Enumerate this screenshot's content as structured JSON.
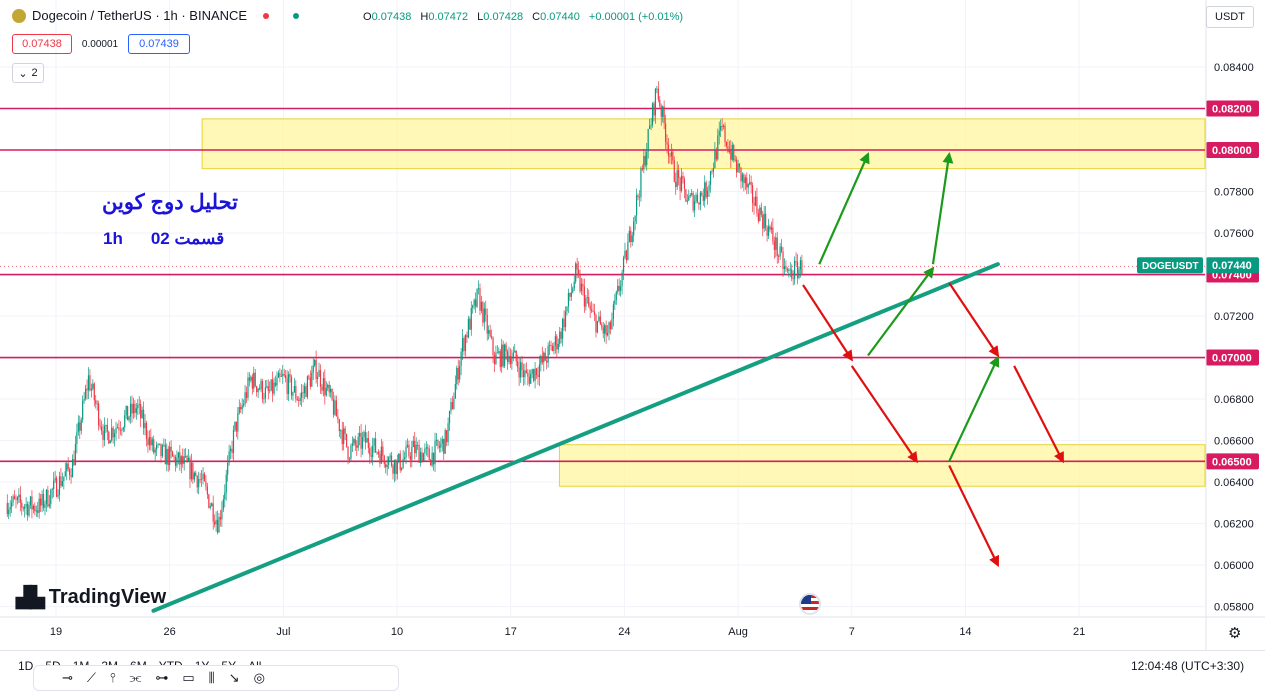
{
  "header": {
    "symbol_title": "Dogecoin / TetherUS · 1h · BINANCE",
    "ohlc": [
      {
        "k": "O",
        "v": "0.07438"
      },
      {
        "k": "H",
        "v": "0.07472"
      },
      {
        "k": "L",
        "v": "0.07428"
      },
      {
        "k": "C",
        "v": "0.07440"
      },
      {
        "k": "",
        "v": "+0.00001 (+0.01%)"
      }
    ],
    "sell_price": "0.07438",
    "spread": "0.00001",
    "buy_price": "0.07439",
    "indicator_count": "2",
    "currency": "USDT"
  },
  "annotations": {
    "title_line1": "تحلیل دوج کوین",
    "title_line2_interval": "1h",
    "title_line2_part": "قسمت 02"
  },
  "branding": "TradingView",
  "bottom": {
    "ranges": [
      "1D",
      "5D",
      "1M",
      "3M",
      "6M",
      "YTD",
      "1Y",
      "5Y",
      "All"
    ],
    "clock": "12:04:48 (UTC+3:30)"
  },
  "colors": {
    "up": "#089981",
    "down": "#f23645",
    "level_line": "#d81b60",
    "zone_fill": "#fff59d",
    "trendline": "#149f82",
    "arrow_up": "#1b9a1b",
    "arrow_down": "#e01010",
    "title_text": "#1b14d6"
  },
  "chart_data": {
    "type": "candlestick",
    "ylim": [
      0.0575,
      0.0853
    ],
    "y_ticks": [
      "0.08400",
      "0.07800",
      "0.07600",
      "0.07200",
      "0.06800",
      "0.06600",
      "0.06400",
      "0.06200",
      "0.06000",
      "0.05800"
    ],
    "x_ticks": [
      "19",
      "26",
      "Jul",
      "10",
      "17",
      "24",
      "Aug",
      "7",
      "14",
      "21"
    ],
    "level_labels": [
      {
        "label": "0.08200",
        "value": 0.082
      },
      {
        "label": "0.08000",
        "value": 0.08
      },
      {
        "label": "0.07400",
        "value": 0.074
      },
      {
        "label": "0.07000",
        "value": 0.07
      },
      {
        "label": "0.06500",
        "value": 0.065
      }
    ],
    "current_price_label": "0.07440",
    "current_price": 0.0744,
    "symbol_tag": "DOGEUSDT",
    "zones": [
      {
        "from_date": "Jun 28",
        "to_date": "end",
        "low": 0.0791,
        "high": 0.0815
      },
      {
        "from_date": "Jul 20",
        "to_date": "end",
        "low": 0.0638,
        "high": 0.0658
      }
    ],
    "price_path": [
      {
        "date": "Jun 16",
        "price": 0.063
      },
      {
        "date": "Jun 18",
        "price": 0.0628
      },
      {
        "date": "Jun 20",
        "price": 0.0648
      },
      {
        "date": "Jun 21",
        "price": 0.069
      },
      {
        "date": "Jun 22",
        "price": 0.0662
      },
      {
        "date": "Jun 24",
        "price": 0.0676
      },
      {
        "date": "Jun 25",
        "price": 0.0655
      },
      {
        "date": "Jun 26",
        "price": 0.0652
      },
      {
        "date": "Jun 27",
        "price": 0.0648
      },
      {
        "date": "Jun 28",
        "price": 0.064
      },
      {
        "date": "Jun 29",
        "price": 0.062
      },
      {
        "date": "Jun 30",
        "price": 0.0665
      },
      {
        "date": "Jul 1",
        "price": 0.069
      },
      {
        "date": "Jul 2",
        "price": 0.0682
      },
      {
        "date": "Jul 3",
        "price": 0.069
      },
      {
        "date": "Jul 4",
        "price": 0.068
      },
      {
        "date": "Jul 5",
        "price": 0.0695
      },
      {
        "date": "Jul 6",
        "price": 0.0678
      },
      {
        "date": "Jul 7",
        "price": 0.0655
      },
      {
        "date": "Jul 8",
        "price": 0.066
      },
      {
        "date": "Jul 9",
        "price": 0.0654
      },
      {
        "date": "Jul 10",
        "price": 0.0648
      },
      {
        "date": "Jul 11",
        "price": 0.0656
      },
      {
        "date": "Jul 12",
        "price": 0.0652
      },
      {
        "date": "Jul 13",
        "price": 0.066
      },
      {
        "date": "Jul 14",
        "price": 0.0705
      },
      {
        "date": "Jul 15",
        "price": 0.073
      },
      {
        "date": "Jul 16",
        "price": 0.07
      },
      {
        "date": "Jul 17",
        "price": 0.0702
      },
      {
        "date": "Jul 18",
        "price": 0.069
      },
      {
        "date": "Jul 19",
        "price": 0.0698
      },
      {
        "date": "Jul 20",
        "price": 0.071
      },
      {
        "date": "Jul 21",
        "price": 0.074
      },
      {
        "date": "Jul 22",
        "price": 0.072
      },
      {
        "date": "Jul 23",
        "price": 0.071
      },
      {
        "date": "Jul 24",
        "price": 0.0745
      },
      {
        "date": "Jul 25",
        "price": 0.0785
      },
      {
        "date": "Jul 26",
        "price": 0.083
      },
      {
        "date": "Jul 27",
        "price": 0.079
      },
      {
        "date": "Jul 28",
        "price": 0.0775
      },
      {
        "date": "Jul 29",
        "price": 0.078
      },
      {
        "date": "Jul 30",
        "price": 0.081
      },
      {
        "date": "Jul 31",
        "price": 0.079
      },
      {
        "date": "Aug 1",
        "price": 0.0775
      },
      {
        "date": "Aug 2",
        "price": 0.076
      },
      {
        "date": "Aug 3",
        "price": 0.074
      },
      {
        "date": "Aug 4",
        "price": 0.0744
      }
    ],
    "trendline": {
      "from": {
        "date": "Jun 25",
        "price": 0.0578
      },
      "to": {
        "date": "Aug 16",
        "price": 0.0745
      }
    },
    "arrows": [
      {
        "color": "up",
        "from": {
          "date": "Aug 5",
          "price": 0.0745
        },
        "to": {
          "date": "Aug 8",
          "price": 0.0798
        }
      },
      {
        "color": "up",
        "from": {
          "date": "Aug 8",
          "price": 0.0701
        },
        "to": {
          "date": "Aug 12",
          "price": 0.0743
        }
      },
      {
        "color": "up",
        "from": {
          "date": "Aug 12",
          "price": 0.0745
        },
        "to": {
          "date": "Aug 13",
          "price": 0.0798
        }
      },
      {
        "color": "up",
        "from": {
          "date": "Aug 13",
          "price": 0.065
        },
        "to": {
          "date": "Aug 16",
          "price": 0.07
        }
      },
      {
        "color": "down",
        "from": {
          "date": "Aug 4",
          "price": 0.0735
        },
        "to": {
          "date": "Aug 7",
          "price": 0.0699
        }
      },
      {
        "color": "down",
        "from": {
          "date": "Aug 7",
          "price": 0.0696
        },
        "to": {
          "date": "Aug 11",
          "price": 0.065
        }
      },
      {
        "color": "down",
        "from": {
          "date": "Aug 13",
          "price": 0.0736
        },
        "to": {
          "date": "Aug 16",
          "price": 0.0701
        }
      },
      {
        "color": "down",
        "from": {
          "date": "Aug 13",
          "price": 0.0648
        },
        "to": {
          "date": "Aug 16",
          "price": 0.06
        }
      },
      {
        "color": "down",
        "from": {
          "date": "Aug 17",
          "price": 0.0696
        },
        "to": {
          "date": "Aug 20",
          "price": 0.065
        }
      }
    ]
  }
}
